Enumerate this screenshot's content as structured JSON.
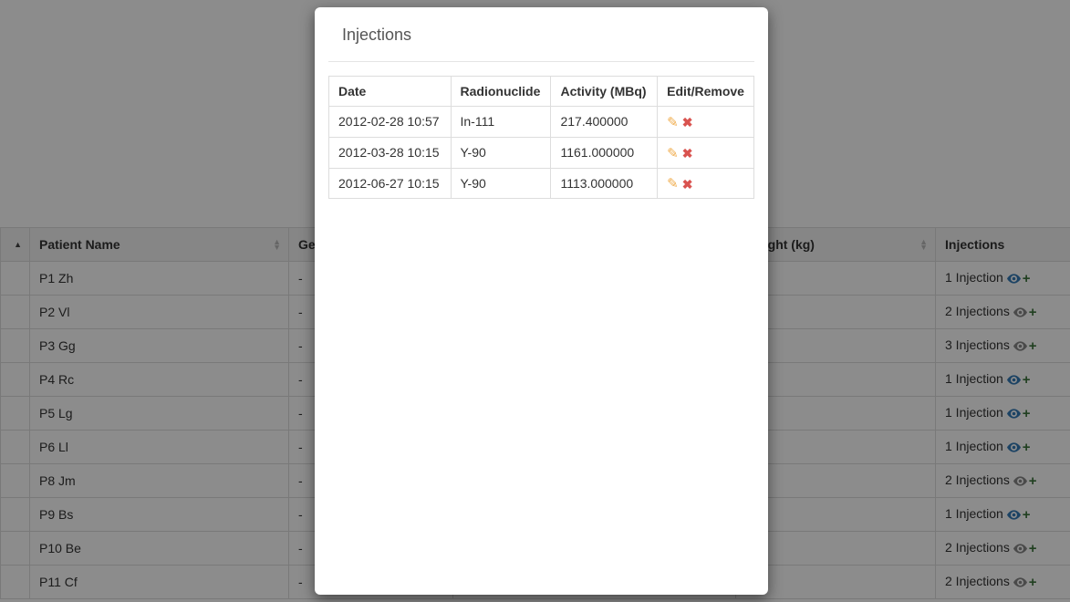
{
  "colors": {
    "border": "#dddddd",
    "header_bg": "#f5f5f5",
    "overlay": "rgba(0,0,0,0.45)",
    "eye_blue": "#337ab7",
    "eye_grey": "#888888",
    "plus_green": "#3c763d",
    "pencil_orange": "#f0ad4e",
    "x_red": "#d9534f"
  },
  "patients_table": {
    "columns": {
      "idx": "",
      "name": "Patient Name",
      "gender": "Gender",
      "mid": "",
      "weight": "Weight (kg)",
      "injections": "Injections"
    },
    "sort": {
      "column": "idx",
      "dir": "asc"
    },
    "rows": [
      {
        "name": "P1 Zh",
        "gender": "-",
        "injections_label": "1 Injection",
        "eye": "blue"
      },
      {
        "name": "P2 Vl",
        "gender": "-",
        "injections_label": "2 Injections",
        "eye": "grey"
      },
      {
        "name": "P3 Gg",
        "gender": "-",
        "injections_label": "3 Injections",
        "eye": "grey"
      },
      {
        "name": "P4 Rc",
        "gender": "-",
        "injections_label": "1 Injection",
        "eye": "blue"
      },
      {
        "name": "P5 Lg",
        "gender": "-",
        "injections_label": "1 Injection",
        "eye": "blue"
      },
      {
        "name": "P6 Ll",
        "gender": "-",
        "injections_label": "1 Injection",
        "eye": "blue"
      },
      {
        "name": "P8 Jm",
        "gender": "-",
        "injections_label": "2 Injections",
        "eye": "grey"
      },
      {
        "name": "P9 Bs",
        "gender": "-",
        "injections_label": "1 Injection",
        "eye": "blue"
      },
      {
        "name": "P10 Be",
        "gender": "-",
        "injections_label": "2 Injections",
        "eye": "grey"
      },
      {
        "name": "P11 Cf",
        "gender": "-",
        "injections_label": "2 Injections",
        "eye": "grey"
      }
    ]
  },
  "modal": {
    "title": "Injections",
    "columns": {
      "date": "Date",
      "radionuclide": "Radionuclide",
      "activity": "Activity (MBq)",
      "edit": "Edit/Remove"
    },
    "rows": [
      {
        "date": "2012-02-28 10:57",
        "radionuclide": "In-111",
        "activity": "217.400000"
      },
      {
        "date": "2012-03-28 10:15",
        "radionuclide": "Y-90",
        "activity": "1161.000000"
      },
      {
        "date": "2012-06-27 10:15",
        "radionuclide": "Y-90",
        "activity": "1113.000000"
      }
    ]
  }
}
